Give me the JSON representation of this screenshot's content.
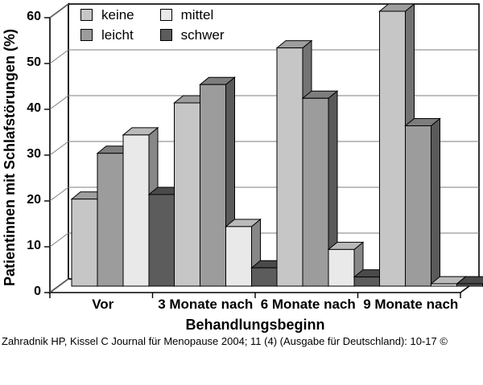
{
  "citation": "Zahradnik HP, Kissel C Journal für Menopause 2004; 11 (4) (Ausgabe für Deutschland): 10-17 ©",
  "chart_data": {
    "type": "bar",
    "subtype": "3d-clustered-column",
    "title": "",
    "xlabel": "Behandlungsbeginn",
    "ylabel": "Patientinnen mit Schlafstörungen (%)",
    "ylim": [
      0,
      60
    ],
    "yticks": [
      0,
      10,
      20,
      30,
      40,
      50,
      60
    ],
    "grid": true,
    "gridline_color": "#7d7d7d",
    "axis_color": "#000000",
    "wall_color": "#ffffff",
    "legend_position": "top-left-inside",
    "legend_display_order": [
      "keine",
      "leicht",
      "mittel",
      "schwer"
    ],
    "categories": [
      "Vor",
      "3 Monate nach",
      "6 Monate nach",
      "9 Monate nach"
    ],
    "series": [
      {
        "name": "keine",
        "color": "#c6c6c6",
        "values": [
          19,
          40,
          52,
          60
        ]
      },
      {
        "name": "leicht",
        "color": "#9c9c9c",
        "values": [
          29,
          44,
          41,
          35
        ]
      },
      {
        "name": "mittel",
        "color": "#e9e9e9",
        "values": [
          33,
          13,
          8,
          0.5
        ]
      },
      {
        "name": "schwer",
        "color": "#5c5c5c",
        "values": [
          20,
          4,
          2,
          0.5
        ]
      }
    ]
  }
}
